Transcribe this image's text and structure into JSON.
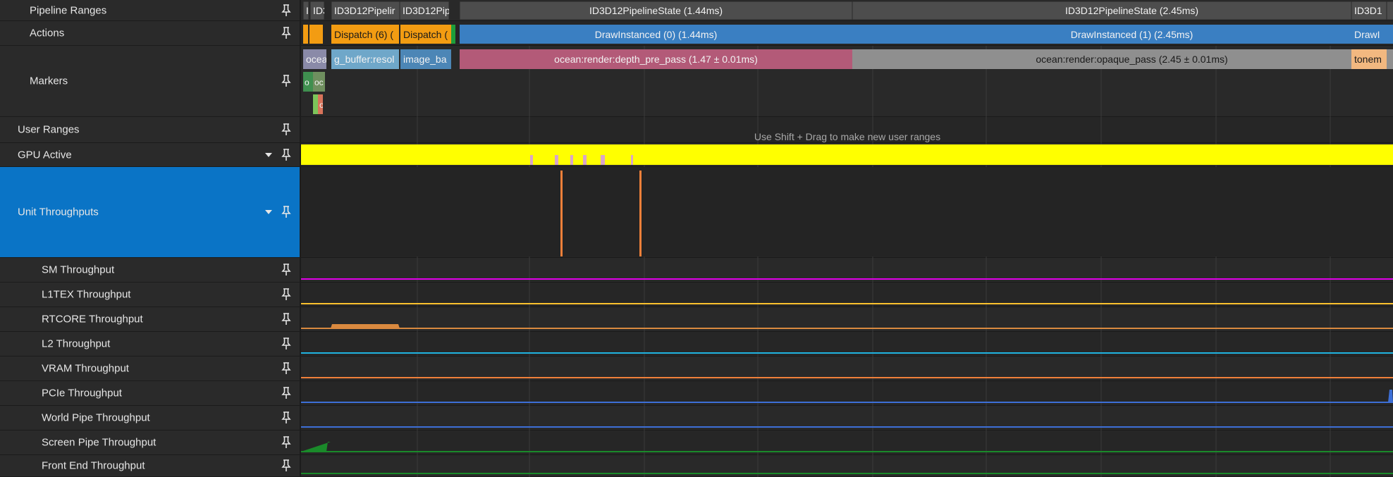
{
  "sidebar": {
    "rows": [
      {
        "label": "Pipeline Ranges",
        "indent": 1,
        "expandable": false
      },
      {
        "label": "Actions",
        "indent": 1,
        "expandable": false
      },
      {
        "label": "Markers",
        "indent": 1,
        "expandable": false
      },
      {
        "label": "User Ranges",
        "indent": 0,
        "expandable": false
      },
      {
        "label": "GPU Active",
        "indent": 0,
        "expandable": true
      },
      {
        "label": "Unit Throughputs",
        "indent": 0,
        "expandable": true,
        "selected": true
      },
      {
        "label": "SM Throughput",
        "indent": 2,
        "expandable": false
      },
      {
        "label": "L1TEX Throughput",
        "indent": 2,
        "expandable": false
      },
      {
        "label": "RTCORE Throughput",
        "indent": 2,
        "expandable": false
      },
      {
        "label": "L2 Throughput",
        "indent": 2,
        "expandable": false
      },
      {
        "label": "VRAM Throughput",
        "indent": 2,
        "expandable": false
      },
      {
        "label": "PCIe Throughput",
        "indent": 2,
        "expandable": false
      },
      {
        "label": "World Pipe Throughput",
        "indent": 2,
        "expandable": false
      },
      {
        "label": "Screen Pipe Throughput",
        "indent": 2,
        "expandable": false
      },
      {
        "label": "Front End Throughput",
        "indent": 2,
        "expandable": false
      }
    ]
  },
  "timeline": {
    "pipeline_ranges": [
      {
        "label": "I"
      },
      {
        "label": "ID3"
      },
      {
        "label": "ID3D12Pipelir"
      },
      {
        "label": "ID3D12Pip"
      },
      {
        "label": ""
      },
      {
        "label": "ID3D12PipelineState (1.44ms)"
      },
      {
        "label": "ID3D12PipelineState (2.45ms)"
      },
      {
        "label": "ID3D1"
      }
    ],
    "actions": [
      {
        "label": "",
        "color": "#f39c12"
      },
      {
        "label": "",
        "color": "#f39c12"
      },
      {
        "label": "Dispatch (6) (",
        "color": "#f39c12"
      },
      {
        "label": "Dispatch (",
        "color": "#f39c12"
      },
      {
        "label": "",
        "color": "#1e9e3a"
      },
      {
        "label": "DrawInstanced (0) (1.44ms)",
        "color": "#3a7fc2"
      },
      {
        "label": "DrawInstanced (1) (2.45ms)",
        "color": "#3a7fc2"
      },
      {
        "label": "DrawI",
        "color": "#3a7fc2"
      }
    ],
    "markers": [
      {
        "label": "ocea",
        "color": "#8a8aa8"
      },
      {
        "label": "g_buffer:resol",
        "color": "#6fa7c9"
      },
      {
        "label": "image_ba",
        "color": "#4c86b6"
      },
      {
        "label": "ocean:render:depth_pre_pass (1.47 ± 0.01ms)",
        "color": "#b35a78"
      },
      {
        "label": "ocean:render:opaque_pass (2.45 ± 0.01ms)",
        "color": "#8f8f8f"
      },
      {
        "label": "tonem",
        "color": "#f2b880"
      }
    ],
    "sub_markers": [
      {
        "label": "o",
        "color": "#3f8f4f"
      },
      {
        "label": "oc",
        "color": "#6f8f5f"
      },
      {
        "label": "",
        "color": "#7cc45a"
      },
      {
        "label": "o",
        "color": "#d8735a"
      }
    ],
    "user_ranges_hint": "Use Shift + Drag to make new user ranges"
  },
  "colors": {
    "gpu_active": "#ffff00",
    "sm": "#e000e8",
    "l1tex": "#ffc12e",
    "rtcore": "#d9893f",
    "l2": "#1fb3e0",
    "vram": "#f0803a",
    "pcie": "#3d6fd6",
    "world_pipe": "#3d6fd6",
    "screen_pipe": "#1a8a2a",
    "front_end": "#1a8a2a"
  }
}
